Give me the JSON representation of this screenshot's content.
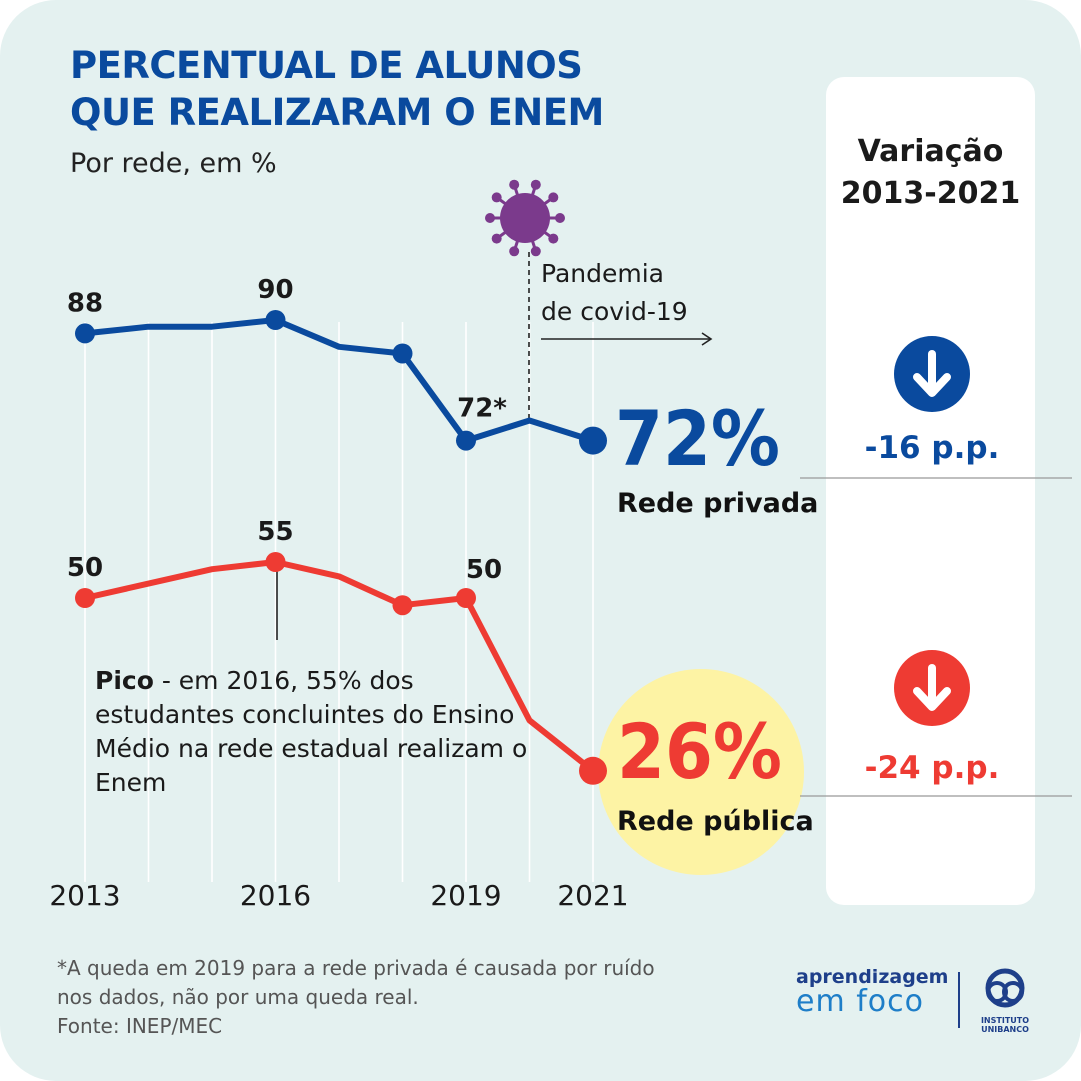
{
  "title_line1": "PERCENTUAL DE ALUNOS",
  "title_line2": "QUE REALIZARAM O ENEM",
  "subtitle": "Por rede, em %",
  "panel": {
    "title_line1": "Variação",
    "title_line2": "2013-2021",
    "privada_change": "-16 p.p.",
    "publica_change": "-24 p.p."
  },
  "annotation": {
    "pandemia_line1": "Pandemia",
    "pandemia_line2": "de covid-19",
    "callout_bold": "Pico",
    "callout_rest": " - em 2016, 55% dos estudantes concluintes do Ensino Médio na rede estadual realizam o Enem"
  },
  "footnote_line1": "*A queda em 2019 para a rede privada é causada por ruído",
  "footnote_line2": "nos dados, não por uma queda real.",
  "source": "Fonte: INEP/MEC",
  "logo": {
    "line1": "aprendizagem",
    "line2": "em foco",
    "inst_line1": "INSTITUTO",
    "inst_line2": "UNIBANCO"
  },
  "colors": {
    "privada": "#0a4a9e",
    "publica": "#ee3b33",
    "title": "#0a4a9e",
    "highlight": "#fdf3a4",
    "virus": "#7b3a8c"
  },
  "icons": {
    "virus": "virus-icon",
    "arrow_down": "arrow-down-circle-icon"
  },
  "chart_data": {
    "type": "line",
    "x": [
      2013,
      2014,
      2015,
      2016,
      2017,
      2018,
      2019,
      2020,
      2021
    ],
    "x_tick_labels": [
      "2013",
      "2016",
      "2019",
      "2021"
    ],
    "series": [
      {
        "name": "Rede privada",
        "values": [
          88,
          89,
          89,
          90,
          86,
          85,
          72,
          75,
          72
        ],
        "labeled_points": [
          {
            "year": 2013,
            "label": "88"
          },
          {
            "year": 2016,
            "label": "90"
          },
          {
            "year": 2019,
            "label": "72*"
          }
        ],
        "end_label": "72%"
      },
      {
        "name": "Rede pública",
        "values": [
          50,
          52,
          54,
          55,
          53,
          49,
          50,
          33,
          26
        ],
        "labeled_points": [
          {
            "year": 2013,
            "label": "50"
          },
          {
            "year": 2016,
            "label": "55"
          },
          {
            "year": 2019,
            "label": "50"
          }
        ],
        "end_label": "26%"
      }
    ]
  }
}
